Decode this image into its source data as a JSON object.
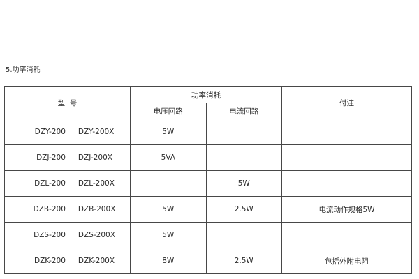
{
  "page": {
    "heading": "5.功率消耗"
  },
  "table": {
    "header": {
      "model": "型  号",
      "power_group": "功率消耗",
      "voltage_circuit": "电压回路",
      "current_circuit": "电流回路",
      "notes": "付注"
    },
    "rows": [
      {
        "model_a": "DZY-200",
        "model_b": "DZY-200X",
        "voltage": "5W",
        "current": "",
        "notes": ""
      },
      {
        "model_a": "DZJ-200",
        "model_b": "DZJ-200X",
        "voltage": "5VA",
        "current": "",
        "notes": ""
      },
      {
        "model_a": "DZL-200",
        "model_b": "DZL-200X",
        "voltage": "",
        "current": "5W",
        "notes": ""
      },
      {
        "model_a": "DZB-200",
        "model_b": "DZB-200X",
        "voltage": "5W",
        "current": "2.5W",
        "notes": "电流动作规格5W"
      },
      {
        "model_a": "DZS-200",
        "model_b": "DZS-200X",
        "voltage": "5W",
        "current": "",
        "notes": ""
      },
      {
        "model_a": "DZK-200",
        "model_b": "DZK-200X",
        "voltage": "8W",
        "current": "2.5W",
        "notes": "包括外附电阻"
      }
    ]
  }
}
